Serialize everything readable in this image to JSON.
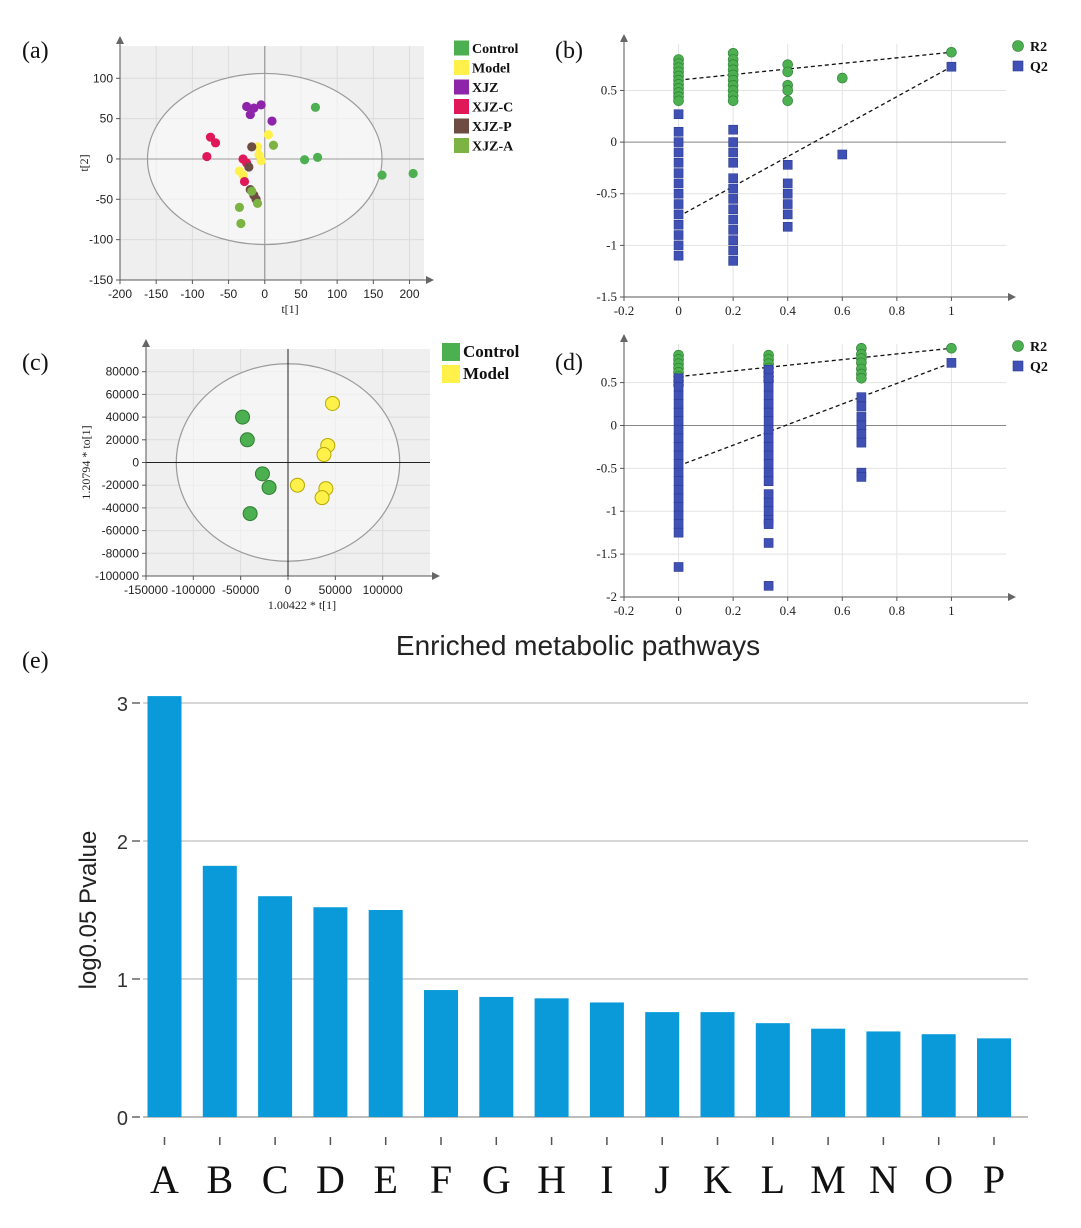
{
  "chart_data": [
    {
      "id": "a",
      "panel_label": "(a)",
      "type": "scatter",
      "title": "",
      "xlabel": "t[1]",
      "ylabel": "t[2]",
      "xlim": [
        -200,
        220
      ],
      "ylim": [
        -150,
        140
      ],
      "xticks": [
        "-200",
        "-150",
        "-100",
        "-50",
        "0",
        "50",
        "100",
        "150",
        "200"
      ],
      "yticks": [
        "100",
        "50",
        "0",
        "-50",
        "-100",
        "-150"
      ],
      "ellipse": {
        "cx": 0,
        "cy": 0,
        "rx": 162,
        "ry": 106
      },
      "legend": [
        {
          "name": "Control",
          "color": "#4caf50"
        },
        {
          "name": "Model",
          "color": "#fff04a"
        },
        {
          "name": "XJZ",
          "color": "#8e24aa"
        },
        {
          "name": "XJZ-C",
          "color": "#e0185a"
        },
        {
          "name": "XJZ-P",
          "color": "#6d4c41"
        },
        {
          "name": "XJZ-A",
          "color": "#7cb342"
        }
      ],
      "series": [
        {
          "name": "Control",
          "color": "#4caf50",
          "points": [
            [
              70,
              64
            ],
            [
              73,
              2
            ],
            [
              55,
              -1
            ],
            [
              162,
              -20
            ],
            [
              205,
              -18
            ]
          ]
        },
        {
          "name": "Model",
          "color": "#fff04a",
          "points": [
            [
              5,
              30
            ],
            [
              -10,
              15
            ],
            [
              -8,
              5
            ],
            [
              -35,
              -15
            ],
            [
              -30,
              -20
            ],
            [
              -5,
              -2
            ]
          ]
        },
        {
          "name": "XJZ",
          "color": "#8e24aa",
          "points": [
            [
              -25,
              65
            ],
            [
              -15,
              63
            ],
            [
              -5,
              67
            ],
            [
              10,
              47
            ],
            [
              -20,
              55
            ]
          ]
        },
        {
          "name": "XJZ-C",
          "color": "#e0185a",
          "points": [
            [
              -75,
              27
            ],
            [
              -68,
              20
            ],
            [
              -80,
              3
            ],
            [
              -30,
              0
            ],
            [
              -25,
              -5
            ],
            [
              -28,
              -28
            ]
          ]
        },
        {
          "name": "XJZ-P",
          "color": "#6d4c41",
          "points": [
            [
              -18,
              15
            ],
            [
              -22,
              -10
            ],
            [
              -20,
              -38
            ],
            [
              -15,
              -45
            ],
            [
              -12,
              -50
            ]
          ]
        },
        {
          "name": "XJZ-A",
          "color": "#7cb342",
          "points": [
            [
              12,
              17
            ],
            [
              -35,
              -60
            ],
            [
              -33,
              -80
            ],
            [
              -18,
              -40
            ],
            [
              -10,
              -55
            ]
          ]
        }
      ]
    },
    {
      "id": "b",
      "panel_label": "(b)",
      "type": "scatter",
      "title": "",
      "xlabel": "",
      "ylabel": "",
      "xlim": [
        -0.2,
        1.2
      ],
      "ylim": [
        -1.5,
        0.95
      ],
      "xticks": [
        "-0.2",
        "0",
        "0.2",
        "0.4",
        "0.6",
        "0.8",
        "1"
      ],
      "yticks": [
        "0.5",
        "0",
        "-0.5",
        "-1",
        "-1.5"
      ],
      "legend": [
        {
          "name": "R2",
          "color": "#4caf50"
        },
        {
          "name": "Q2",
          "color": "#3f51b5"
        }
      ],
      "series": [
        {
          "name": "R2",
          "color": "#4caf50",
          "points": [
            [
              0,
              0.8
            ],
            [
              0,
              0.76
            ],
            [
              0,
              0.72
            ],
            [
              0,
              0.68
            ],
            [
              0,
              0.64
            ],
            [
              0,
              0.6
            ],
            [
              0,
              0.56
            ],
            [
              0,
              0.52
            ],
            [
              0,
              0.48
            ],
            [
              0,
              0.44
            ],
            [
              0,
              0.4
            ],
            [
              0.2,
              0.86
            ],
            [
              0.2,
              0.8
            ],
            [
              0.2,
              0.75
            ],
            [
              0.2,
              0.7
            ],
            [
              0.2,
              0.65
            ],
            [
              0.2,
              0.6
            ],
            [
              0.2,
              0.55
            ],
            [
              0.2,
              0.5
            ],
            [
              0.2,
              0.45
            ],
            [
              0.2,
              0.4
            ],
            [
              0.4,
              0.75
            ],
            [
              0.4,
              0.68
            ],
            [
              0.4,
              0.55
            ],
            [
              0.4,
              0.5
            ],
            [
              0.4,
              0.4
            ],
            [
              0.6,
              0.62
            ],
            [
              1,
              0.87
            ]
          ]
        },
        {
          "name": "Q2",
          "color": "#3f51b5",
          "points": [
            [
              0,
              0.27
            ],
            [
              0,
              0.1
            ],
            [
              0,
              0.0
            ],
            [
              0,
              -0.1
            ],
            [
              0,
              -0.2
            ],
            [
              0,
              -0.3
            ],
            [
              0,
              -0.4
            ],
            [
              0,
              -0.5
            ],
            [
              0,
              -0.6
            ],
            [
              0,
              -0.7
            ],
            [
              0,
              -0.8
            ],
            [
              0,
              -0.9
            ],
            [
              0,
              -1.0
            ],
            [
              0,
              -1.1
            ],
            [
              0.2,
              0.12
            ],
            [
              0.2,
              0.0
            ],
            [
              0.2,
              -0.1
            ],
            [
              0.2,
              -0.2
            ],
            [
              0.2,
              -0.35
            ],
            [
              0.2,
              -0.45
            ],
            [
              0.2,
              -0.55
            ],
            [
              0.2,
              -0.65
            ],
            [
              0.2,
              -0.75
            ],
            [
              0.2,
              -0.85
            ],
            [
              0.2,
              -0.95
            ],
            [
              0.2,
              -1.05
            ],
            [
              0.2,
              -1.15
            ],
            [
              0.4,
              -0.22
            ],
            [
              0.4,
              -0.4
            ],
            [
              0.4,
              -0.5
            ],
            [
              0.4,
              -0.6
            ],
            [
              0.4,
              -0.7
            ],
            [
              0.4,
              -0.82
            ],
            [
              0.6,
              -0.12
            ],
            [
              1,
              0.73
            ]
          ]
        }
      ],
      "regression_lines": [
        {
          "name": "R2",
          "from": [
            0,
            0.6
          ],
          "to": [
            1,
            0.87
          ]
        },
        {
          "name": "Q2",
          "from": [
            0,
            -0.72
          ],
          "to": [
            1,
            0.73
          ]
        }
      ]
    },
    {
      "id": "c",
      "panel_label": "(c)",
      "type": "scatter",
      "title": "",
      "xlabel": "1.00422 * t[1]",
      "ylabel": "1.20794 * to[1]",
      "xlim": [
        -150000,
        150000
      ],
      "ylim": [
        -100000,
        100000
      ],
      "xticks": [
        "-150000",
        "-100000",
        "-50000",
        "0",
        "50000",
        "100000"
      ],
      "yticks": [
        "80000",
        "60000",
        "40000",
        "20000",
        "0",
        "-20000",
        "-40000",
        "-60000",
        "-80000",
        "-100000"
      ],
      "ellipse": {
        "cx": 0,
        "cy": 0,
        "rx": 118000,
        "ry": 87000
      },
      "legend": [
        {
          "name": "Control",
          "color": "#4caf50"
        },
        {
          "name": "Model",
          "color": "#fff04a"
        }
      ],
      "series": [
        {
          "name": "Control",
          "color": "#4caf50",
          "points": [
            [
              -48000,
              40000
            ],
            [
              -43000,
              20000
            ],
            [
              -27000,
              -10000
            ],
            [
              -20000,
              -22000
            ],
            [
              -40000,
              -45000
            ]
          ]
        },
        {
          "name": "Model",
          "color": "#fff04a",
          "points": [
            [
              47000,
              52000
            ],
            [
              42000,
              15000
            ],
            [
              38000,
              7000
            ],
            [
              10000,
              -20000
            ],
            [
              40000,
              -23000
            ],
            [
              36000,
              -31000
            ]
          ]
        }
      ]
    },
    {
      "id": "d",
      "panel_label": "(d)",
      "type": "scatter",
      "title": "",
      "xlabel": "",
      "ylabel": "",
      "xlim": [
        -0.2,
        1.2
      ],
      "ylim": [
        -2.0,
        0.95
      ],
      "xticks": [
        "-0.2",
        "0",
        "0.2",
        "0.4",
        "0.6",
        "0.8",
        "1"
      ],
      "yticks": [
        "0.5",
        "0",
        "-0.5",
        "-1",
        "-1.5",
        "-2"
      ],
      "legend": [
        {
          "name": "R2",
          "color": "#4caf50"
        },
        {
          "name": "Q2",
          "color": "#3f51b5"
        }
      ],
      "series": [
        {
          "name": "R2",
          "color": "#4caf50",
          "points": [
            [
              0,
              0.82
            ],
            [
              0,
              0.77
            ],
            [
              0,
              0.72
            ],
            [
              0,
              0.67
            ],
            [
              0,
              0.62
            ],
            [
              0,
              0.57
            ],
            [
              0,
              0.52
            ],
            [
              0,
              0.47
            ],
            [
              0.33,
              0.82
            ],
            [
              0.33,
              0.77
            ],
            [
              0.33,
              0.72
            ],
            [
              0.33,
              0.67
            ],
            [
              0.33,
              0.62
            ],
            [
              0.33,
              0.57
            ],
            [
              0.33,
              0.52
            ],
            [
              0.67,
              0.9
            ],
            [
              0.67,
              0.83
            ],
            [
              0.67,
              0.78
            ],
            [
              0.67,
              0.73
            ],
            [
              0.67,
              0.66
            ],
            [
              0.67,
              0.6
            ],
            [
              0.67,
              0.55
            ],
            [
              1,
              0.9
            ]
          ]
        },
        {
          "name": "Q2",
          "color": "#3f51b5",
          "points": [
            [
              0,
              0.55
            ],
            [
              0,
              0.45
            ],
            [
              0,
              0.35
            ],
            [
              0,
              0.25
            ],
            [
              0,
              0.15
            ],
            [
              0,
              0.05
            ],
            [
              0,
              -0.05
            ],
            [
              0,
              -0.15
            ],
            [
              0,
              -0.25
            ],
            [
              0,
              -0.35
            ],
            [
              0,
              -0.45
            ],
            [
              0,
              -0.55
            ],
            [
              0,
              -0.65
            ],
            [
              0,
              -0.75
            ],
            [
              0,
              -0.85
            ],
            [
              0,
              -0.95
            ],
            [
              0,
              -1.05
            ],
            [
              0,
              -1.15
            ],
            [
              0,
              -1.25
            ],
            [
              0,
              -1.65
            ],
            [
              0.33,
              0.65
            ],
            [
              0.33,
              0.55
            ],
            [
              0.33,
              0.45
            ],
            [
              0.33,
              0.35
            ],
            [
              0.33,
              0.25
            ],
            [
              0.33,
              0.15
            ],
            [
              0.33,
              0.05
            ],
            [
              0.33,
              -0.05
            ],
            [
              0.33,
              -0.15
            ],
            [
              0.33,
              -0.25
            ],
            [
              0.33,
              -0.35
            ],
            [
              0.33,
              -0.45
            ],
            [
              0.33,
              -0.55
            ],
            [
              0.33,
              -0.65
            ],
            [
              0.33,
              -0.8
            ],
            [
              0.33,
              -0.9
            ],
            [
              0.33,
              -1.0
            ],
            [
              0.33,
              -1.1
            ],
            [
              0.33,
              -1.15
            ],
            [
              0.33,
              -1.37
            ],
            [
              0.33,
              -1.87
            ],
            [
              0.67,
              0.33
            ],
            [
              0.67,
              0.22
            ],
            [
              0.67,
              0.1
            ],
            [
              0.67,
              0.0
            ],
            [
              0.67,
              -0.1
            ],
            [
              0.67,
              -0.2
            ],
            [
              0.67,
              -0.55
            ],
            [
              0.67,
              -0.6
            ],
            [
              1,
              0.73
            ]
          ]
        }
      ],
      "regression_lines": [
        {
          "name": "R2",
          "from": [
            0,
            0.57
          ],
          "to": [
            1,
            0.9
          ]
        },
        {
          "name": "Q2",
          "from": [
            0,
            -0.47
          ],
          "to": [
            1,
            0.73
          ]
        }
      ]
    },
    {
      "id": "e",
      "panel_label": "(e)",
      "type": "bar",
      "title": "Enriched metabolic pathways",
      "xlabel": "",
      "ylabel": "log0.05 Pvalue",
      "ylim": [
        0,
        3.1
      ],
      "yticks": [
        "3",
        "2",
        "1",
        "0"
      ],
      "categories": [
        "A",
        "B",
        "C",
        "D",
        "E",
        "F",
        "G",
        "H",
        "I",
        "J",
        "K",
        "L",
        "M",
        "N",
        "O",
        "P"
      ],
      "values": [
        3.05,
        1.82,
        1.6,
        1.52,
        1.5,
        0.92,
        0.87,
        0.86,
        0.83,
        0.76,
        0.76,
        0.68,
        0.64,
        0.62,
        0.6,
        0.57
      ],
      "bar_color": "#0a9ad9"
    }
  ]
}
